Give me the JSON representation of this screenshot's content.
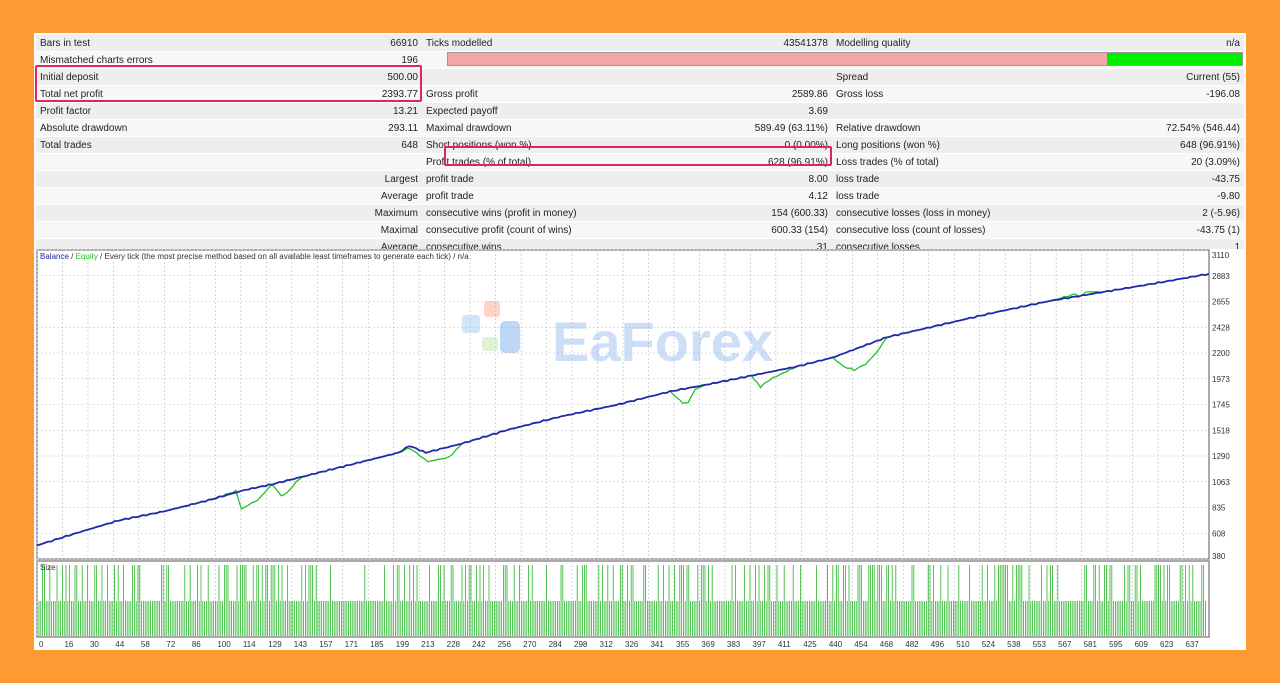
{
  "report": {
    "rows": [
      {
        "c1": "Bars in test",
        "v1": "66910",
        "c2": "Ticks modelled",
        "v2": "43541378",
        "c3": "Modelling quality",
        "v3": "n/a"
      },
      {
        "c1": "Mismatched charts errors",
        "v1": "196",
        "c2": "",
        "v2": "",
        "c3": "",
        "v3": ""
      },
      {
        "c1": "Initial deposit",
        "v1": "500.00",
        "c2": "",
        "v2": "",
        "c3": "Spread",
        "v3": "Current (55)"
      },
      {
        "c1": "Total net profit",
        "v1": "2393.77",
        "c2": "Gross profit",
        "v2": "2589.86",
        "c3": "Gross loss",
        "v3": "-196.08"
      },
      {
        "c1": "Profit factor",
        "v1": "13.21",
        "c2": "Expected payoff",
        "v2": "3.69",
        "c3": "",
        "v3": ""
      },
      {
        "c1": "Absolute drawdown",
        "v1": "293.11",
        "c2": "Maximal drawdown",
        "v2": "589.49 (63.11%)",
        "c3": "Relative drawdown",
        "v3": "72.54% (546.44)"
      },
      {
        "c1": "Total trades",
        "v1": "648",
        "c2": "Short positions (won %)",
        "v2": "0 (0.00%)",
        "c3": "Long positions (won %)",
        "v3": "648 (96.91%)"
      },
      {
        "c1": "",
        "v1": "",
        "c2": "Profit trades (% of total)",
        "v2": "628 (96.91%)",
        "c3": "Loss trades (% of total)",
        "v3": "20 (3.09%)"
      },
      {
        "c1": "",
        "v1": "Largest",
        "c2": "profit trade",
        "v2": "8.00",
        "c3": "loss trade",
        "v3": "-43.75"
      },
      {
        "c1": "",
        "v1": "Average",
        "c2": "profit trade",
        "v2": "4.12",
        "c3": "loss trade",
        "v3": "-9.80"
      },
      {
        "c1": "",
        "v1": "Maximum",
        "c2": "consecutive wins (profit in money)",
        "v2": "154 (600.33)",
        "c3": "consecutive losses (loss in money)",
        "v3": "2 (-5.96)"
      },
      {
        "c1": "",
        "v1": "Maximal",
        "c2": "consecutive profit (count of wins)",
        "v2": "600.33 (154)",
        "c3": "consecutive loss (count of losses)",
        "v3": "-43.75 (1)"
      },
      {
        "c1": "",
        "v1": "Average",
        "c2": "consecutive wins",
        "v2": "31",
        "c3": "consecutive losses",
        "v3": "1"
      }
    ],
    "quality_fill": 0.83
  },
  "chart_legend": {
    "balance": "Balance",
    "sep1": " / ",
    "equity": "Equity",
    "rest": " / Every tick (the most precise method based on all available least timeframes to generate each tick) / n/a"
  },
  "size_label": "Size",
  "watermark": "EaForex",
  "colors": {
    "balance": "#1f2aa8",
    "equity": "#22c02a",
    "quality_bad": "#f4a6a6",
    "quality_good": "#00ee00",
    "highlight": "#e0245e",
    "background": "#ff9a33",
    "size_bars": "#2ab52a"
  },
  "chart_data": {
    "type": "line",
    "y_ticks": [
      "3110",
      "2883",
      "2655",
      "2428",
      "2200",
      "1973",
      "1745",
      "1518",
      "1290",
      "1063",
      "835",
      "608",
      "380"
    ],
    "ylim": [
      380,
      3110
    ],
    "x_ticks": [
      "0",
      "16",
      "30",
      "44",
      "58",
      "72",
      "86",
      "100",
      "114",
      "129",
      "143",
      "157",
      "171",
      "185",
      "199",
      "213",
      "228",
      "242",
      "256",
      "270",
      "284",
      "298",
      "312",
      "326",
      "341",
      "355",
      "369",
      "383",
      "397",
      "411",
      "425",
      "440",
      "454",
      "468",
      "482",
      "496",
      "510",
      "524",
      "538",
      "553",
      "567",
      "581",
      "595",
      "609",
      "623",
      "637"
    ],
    "xlim": [
      0,
      648
    ],
    "series": [
      {
        "name": "Balance",
        "x": [
          0,
          20,
          45,
          70,
          95,
          115,
          130,
          150,
          175,
          200,
          206,
          215,
          235,
          260,
          290,
          320,
          350,
          370,
          395,
          420,
          440,
          455,
          470,
          500,
          530,
          560,
          590,
          620,
          648
        ],
        "y": [
          500,
          600,
          720,
          800,
          900,
          990,
          1040,
          1120,
          1220,
          1320,
          1380,
          1320,
          1400,
          1520,
          1640,
          1740,
          1860,
          1920,
          2000,
          2080,
          2160,
          2250,
          2340,
          2450,
          2560,
          2660,
          2740,
          2820,
          2900
        ]
      },
      {
        "name": "Equity",
        "x": [
          0,
          20,
          45,
          70,
          95,
          110,
          113,
          117,
          122,
          130,
          135,
          138,
          145,
          150,
          175,
          200,
          206,
          212,
          216,
          222,
          228,
          235,
          260,
          290,
          320,
          350,
          357,
          360,
          364,
          370,
          395,
          400,
          403,
          407,
          420,
          440,
          446,
          452,
          458,
          464,
          470,
          500,
          530,
          560,
          574,
          577,
          580,
          590,
          620,
          648
        ],
        "y": [
          500,
          600,
          720,
          800,
          900,
          980,
          820,
          860,
          900,
          1040,
          940,
          960,
          1090,
          1120,
          1220,
          1320,
          1360,
          1290,
          1240,
          1260,
          1280,
          1400,
          1520,
          1640,
          1740,
          1860,
          1760,
          1760,
          1880,
          1920,
          2000,
          1900,
          1940,
          1980,
          2080,
          2160,
          2080,
          2050,
          2100,
          2200,
          2340,
          2450,
          2560,
          2660,
          2720,
          2700,
          2740,
          2740,
          2820,
          2900
        ]
      }
    ]
  }
}
